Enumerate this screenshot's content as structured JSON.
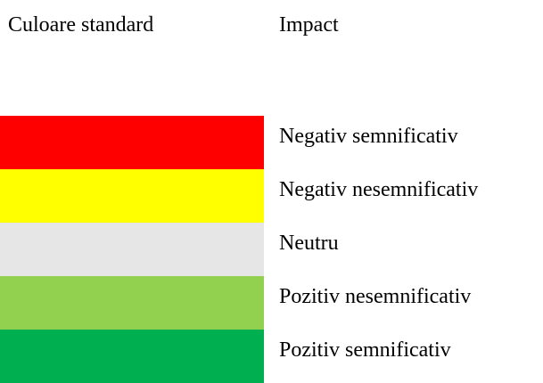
{
  "headers": {
    "color": "Culoare standard",
    "impact": "Impact"
  },
  "legend": [
    {
      "label": "Negativ semnificativ",
      "color": "#ff0000"
    },
    {
      "label": "Negativ nesemnificativ",
      "color": "#ffff00"
    },
    {
      "label": "Neutru",
      "color": "#e6e6e6"
    },
    {
      "label": "Pozitiv nesemnificativ",
      "color": "#92d050"
    },
    {
      "label": "Pozitiv semnificativ",
      "color": "#00b050"
    }
  ]
}
